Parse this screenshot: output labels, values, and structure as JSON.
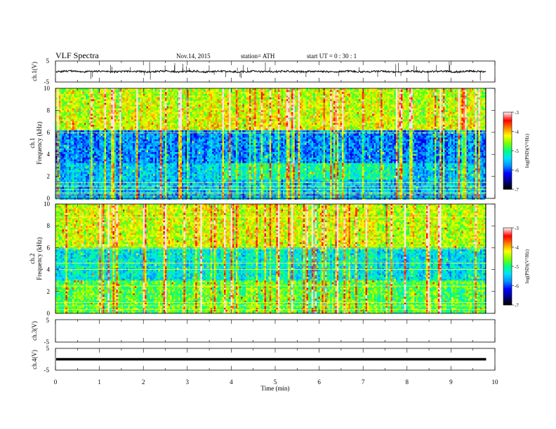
{
  "header": {
    "title": "VLF  Spectra",
    "date": "Nov.14, 2015",
    "station": "station= ATH",
    "start": "start  UT =   0  : 30 : 1"
  },
  "colors": {
    "colormap": [
      "#000000",
      "#00008b",
      "#0000ff",
      "#0090ff",
      "#00e0ff",
      "#00ff80",
      "#80ff00",
      "#ffff00",
      "#ff8000",
      "#ff0000",
      "#ffe6e6"
    ]
  },
  "chart_data": {
    "type": "heatmap",
    "x_axis": {
      "label": "Time  (min)",
      "range": [
        0,
        10
      ],
      "ticks": [
        "0",
        "1",
        "2",
        "3",
        "4",
        "5",
        "6",
        "7",
        "8",
        "9",
        "10"
      ]
    },
    "panels": [
      {
        "kind": "line",
        "ylabel": "ch.1(V)",
        "ylim": [
          -5,
          5
        ],
        "ytick_labels": [
          "5",
          "-5"
        ],
        "series_value": 0
      },
      {
        "kind": "spectrogram",
        "ylabel_line1": "ch.1",
        "ylabel_line2": "Frequency  (kHz)",
        "ylim": [
          0,
          10
        ],
        "ytick_labels": [
          "0",
          "2",
          "4",
          "6",
          "8",
          "10"
        ],
        "colorbar": {
          "label": "log(PSD)(V²/Hz)",
          "range": [
            -7,
            -3
          ],
          "tick_labels": [
            "-7",
            "-6",
            "-5",
            "-4",
            "-3"
          ]
        },
        "data_end_min": 9.8
      },
      {
        "kind": "spectrogram",
        "ylabel_line1": "ch.2",
        "ylabel_line2": "Frequency  (kHz)",
        "ylim": [
          0,
          10
        ],
        "ytick_labels": [
          "0",
          "2",
          "4",
          "6",
          "8",
          "10"
        ],
        "colorbar": {
          "label": "log(PSD)(V²/Hz)",
          "range": [
            -7,
            -3
          ],
          "tick_labels": [
            "-7",
            "-6",
            "-5",
            "-4",
            "-3"
          ]
        },
        "data_end_min": 9.8
      },
      {
        "kind": "line",
        "ylabel": "ch.3(V)",
        "ylim": [
          -5,
          5
        ],
        "ytick_labels": [
          "5",
          "-5"
        ],
        "series_value": null
      },
      {
        "kind": "line",
        "ylabel": "ch.4(V)",
        "ylim": [
          -5,
          5
        ],
        "ytick_labels": [
          "5",
          "-5"
        ],
        "series_value": 0
      }
    ]
  }
}
